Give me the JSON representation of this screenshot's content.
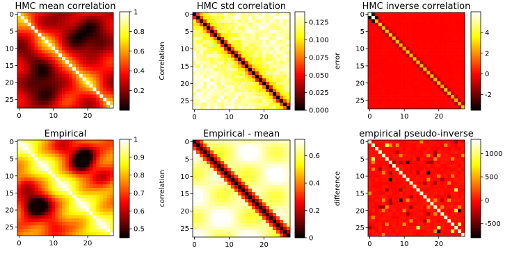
{
  "chart_data": [
    {
      "type": "heatmap",
      "title": "HMC mean correlation",
      "size": 28,
      "pattern": "smooth_corr",
      "xticks": [
        0,
        10,
        20
      ],
      "yticks": [
        0,
        5,
        10,
        15,
        20,
        25
      ],
      "colormap": "hot",
      "colorbar": {
        "label": "Correlation",
        "range": [
          0.0,
          1.0
        ],
        "ticks": [
          0.2,
          0.4,
          0.6,
          0.8,
          1.0
        ]
      }
    },
    {
      "type": "heatmap",
      "title": "HMC std correlation",
      "size": 28,
      "pattern": "std",
      "xticks": [
        0,
        10,
        20
      ],
      "yticks": [
        0,
        5,
        10,
        15,
        20,
        25
      ],
      "colormap": "hot",
      "colorbar": {
        "label": "error",
        "range": [
          0.0,
          0.14
        ],
        "ticks": [
          "0.000",
          "0.025",
          "0.050",
          "0.075",
          "0.100",
          "0.125"
        ]
      }
    },
    {
      "type": "heatmap",
      "title": "HMC inverse correlation",
      "size": 28,
      "pattern": "inverse",
      "xticks": [
        0,
        10,
        20
      ],
      "yticks": [
        0,
        5,
        10,
        15,
        20,
        25
      ],
      "colormap": "hot",
      "colorbar": {
        "label": "",
        "range": [
          -3.5,
          6.0
        ],
        "ticks": [
          -2,
          0,
          2,
          4
        ]
      }
    },
    {
      "type": "heatmap",
      "title": "Empirical",
      "size": 28,
      "pattern": "empirical",
      "xticks": [
        0,
        10,
        20
      ],
      "yticks": [
        0,
        5,
        10,
        15,
        20,
        25
      ],
      "colormap": "hot",
      "colorbar": {
        "label": "correlation",
        "range": [
          0.45,
          1.0
        ],
        "ticks": [
          0.5,
          0.6,
          0.7,
          0.8,
          0.9,
          1.0
        ]
      }
    },
    {
      "type": "heatmap",
      "title": "Empirical - mean",
      "size": 28,
      "pattern": "difference",
      "xticks": [
        0,
        10,
        20
      ],
      "yticks": [
        0,
        5,
        10,
        15,
        20,
        25
      ],
      "colormap": "hot",
      "colorbar": {
        "label": "difference",
        "range": [
          0.0,
          0.72
        ],
        "ticks": [
          0.0,
          0.2,
          0.4,
          0.6
        ]
      }
    },
    {
      "type": "heatmap",
      "title": "empirical pseudo-inverse",
      "size": 28,
      "pattern": "pseudo_inverse",
      "xticks": [
        0,
        10,
        20
      ],
      "yticks": [
        0,
        5,
        10,
        15,
        20,
        25
      ],
      "colormap": "hot",
      "colorbar": {
        "label": "",
        "range": [
          -800,
          1300
        ],
        "ticks": [
          -500,
          0,
          500,
          1000
        ]
      }
    }
  ]
}
